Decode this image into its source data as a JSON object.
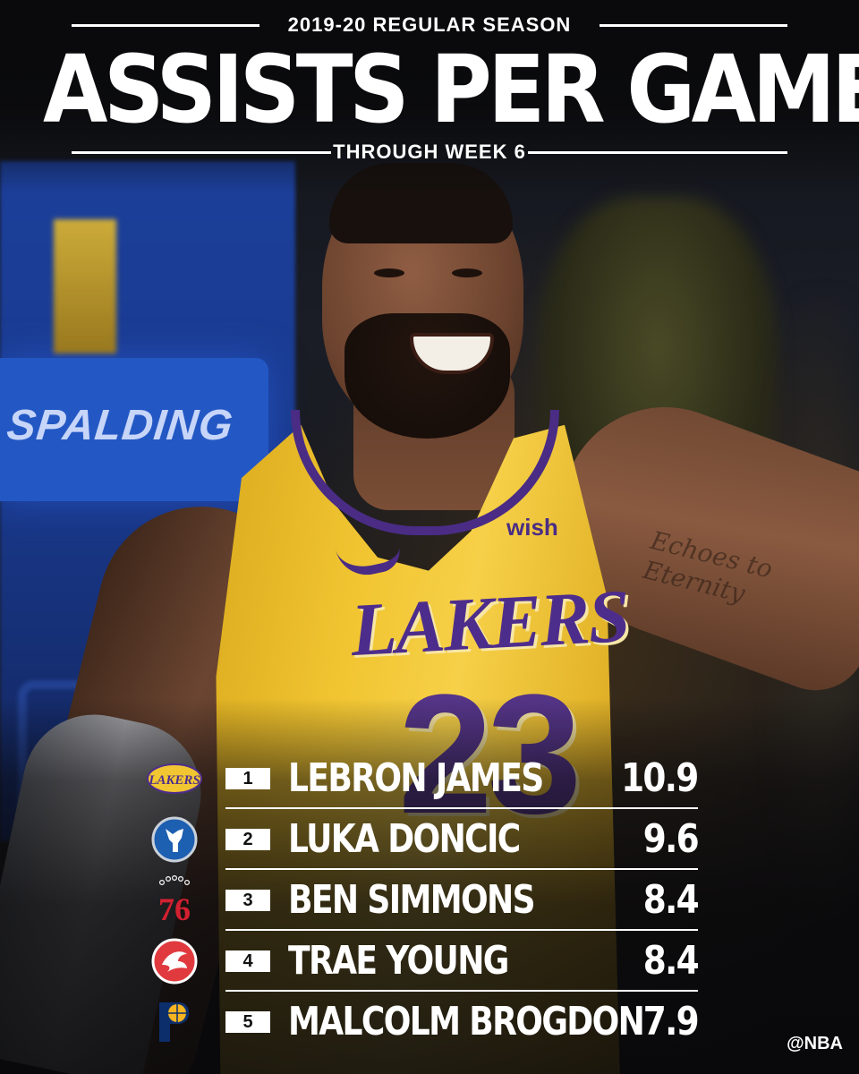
{
  "header": {
    "season": "2019-20 REGULAR SEASON",
    "title": "ASSISTS PER GAME LEADERS",
    "subtitle": "THROUGH WEEK 6"
  },
  "background": {
    "court_sign": "SPALDING",
    "jersey_sponsor": "wish",
    "jersey_team": "LAKERS",
    "jersey_number": "23",
    "tattoo_text": "Echoes to Eternity"
  },
  "leaders": [
    {
      "rank": "1",
      "name": "LEBRON JAMES",
      "apg": "10.9",
      "team_logo": "lakers-logo",
      "team_mark": "LAKERS"
    },
    {
      "rank": "2",
      "name": "LUKA DONCIC",
      "apg": "9.6",
      "team_logo": "mavericks-logo"
    },
    {
      "rank": "3",
      "name": "BEN SIMMONS",
      "apg": "8.4",
      "team_logo": "76ers-logo",
      "team_mark": "76"
    },
    {
      "rank": "4",
      "name": "TRAE YOUNG",
      "apg": "8.4",
      "team_logo": "hawks-logo"
    },
    {
      "rank": "5",
      "name": "MALCOLM BROGDON",
      "apg": "7.9",
      "team_logo": "pacers-logo"
    }
  ],
  "footer": {
    "handle": "@NBA"
  },
  "colors": {
    "lakers_gold": "#f2c633",
    "lakers_purple": "#4d2d8c",
    "mavs_blue": "#1d5fb0",
    "sixers_red": "#d32030",
    "hawks_red": "#e03a3e",
    "pacers_navy": "#0c2f6b",
    "pacers_gold": "#f5b521"
  }
}
